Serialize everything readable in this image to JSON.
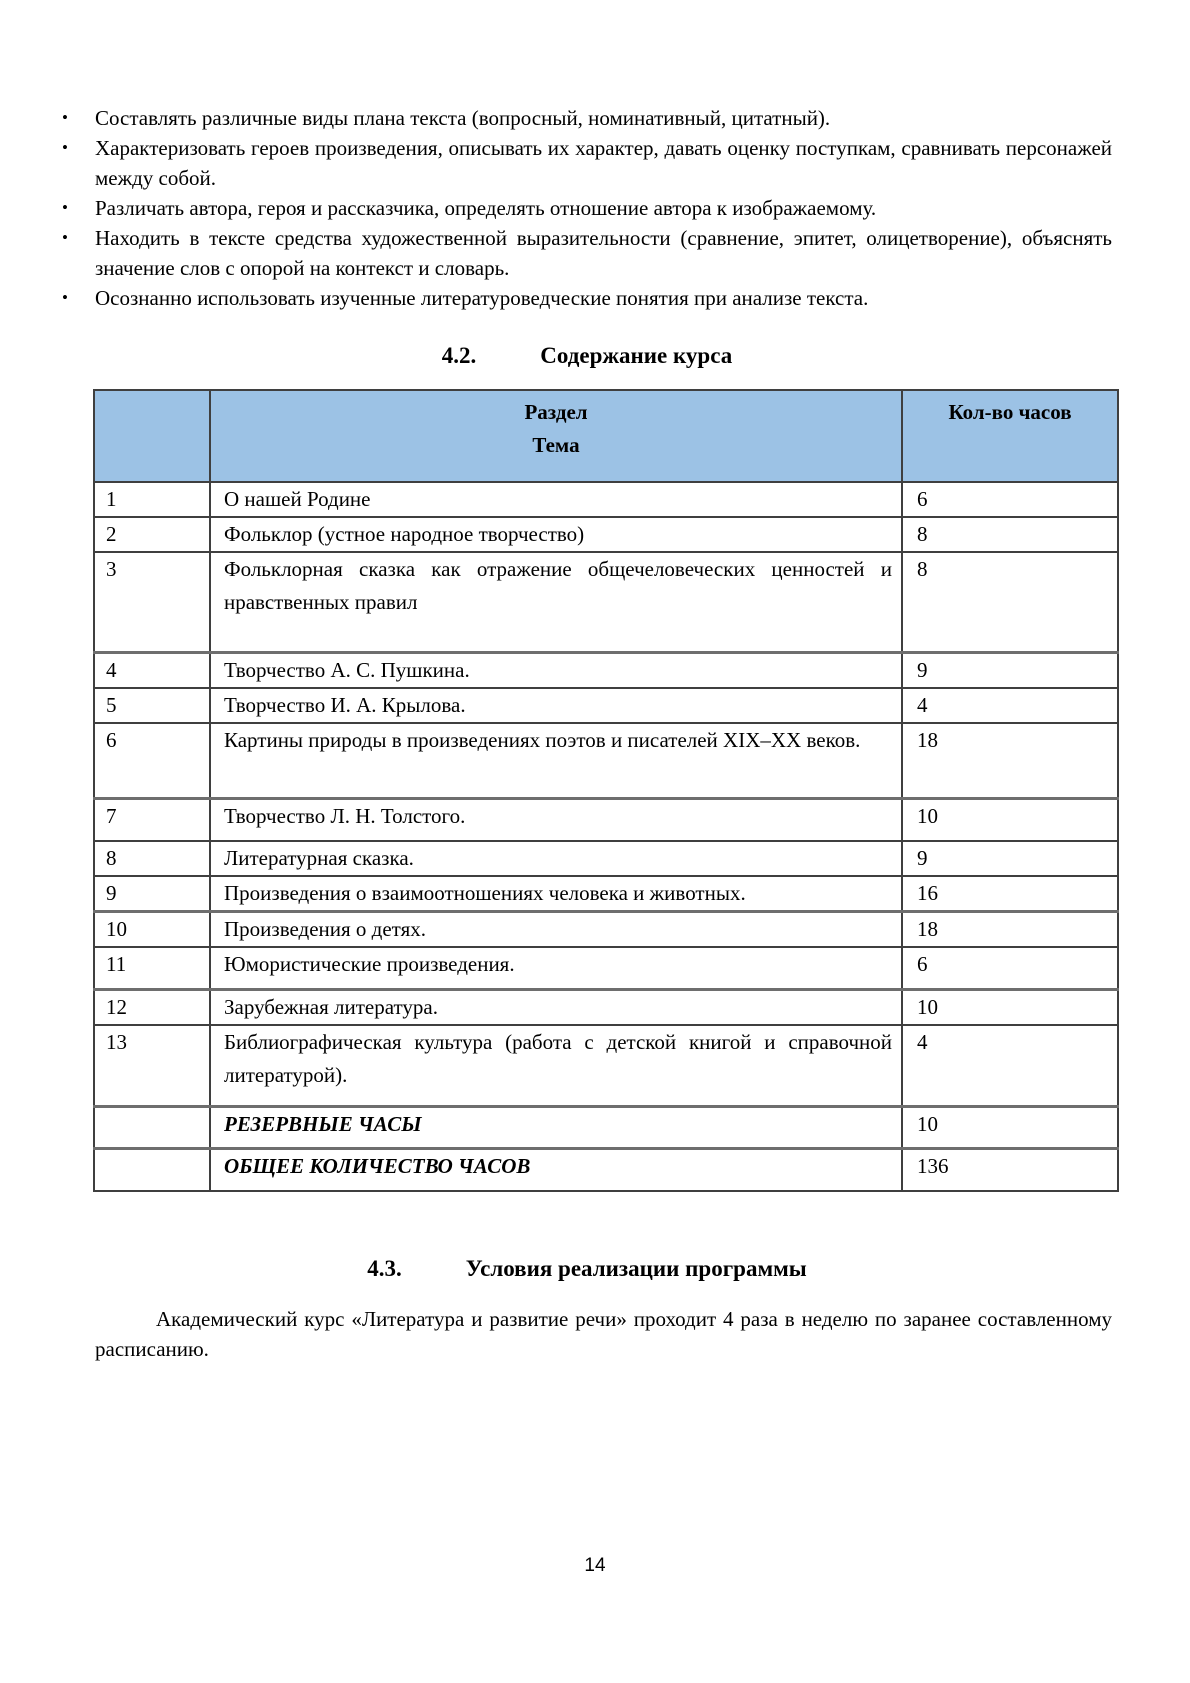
{
  "bullets": [
    "Составлять различные виды плана текста (вопросный, номинативный, цитатный).",
    "Характеризовать героев произведения, описывать их характер, давать оценку поступкам, сравнивать персонажей между собой.",
    "Различать автора, героя и рассказчика, определять отношение автора к изображаемому.",
    "Находить в тексте средства художественной выразительности (сравнение, эпитет, олицетворение), объяснять значение слов с опорой на контекст и словарь.",
    "Осознанно использовать изученные литературоведческие понятия при анализе текста."
  ],
  "bullet_glyph": "•",
  "section_42": {
    "number": "4.2.",
    "title": "Содержание курса"
  },
  "table": {
    "header_fill": "#9CC2E5",
    "header": {
      "col1": "",
      "col2_line1": "Раздел",
      "col2_line2": "Тема",
      "col3": "Кол-во часов"
    },
    "rows": [
      {
        "num": "1",
        "topic": "О нашей Родине",
        "hours": "6"
      },
      {
        "num": "2",
        "topic": "Фольклор (устное народное творчество)",
        "hours": "8"
      },
      {
        "num": "3",
        "topic": "Фольклорная сказка как отражение общечеловеческих ценностей и нравственных правил",
        "hours": "8",
        "justify": true,
        "minh": 100
      },
      {
        "num": "4",
        "topic": "Творчество А. С. Пушкина.",
        "hours": "9",
        "thickTop": true
      },
      {
        "num": "5",
        "topic": "Творчество И. А. Крылова.",
        "hours": "4"
      },
      {
        "num": "6",
        "topic": "Картины природы в произведениях поэтов и писателей XIX–XX веков.",
        "hours": "18",
        "justify": true,
        "minh": 76
      },
      {
        "num": "7",
        "topic": "Творчество Л. Н. Толстого.",
        "hours": "10",
        "thickTop": true,
        "minh": 42
      },
      {
        "num": "8",
        "topic": "Литературная сказка.",
        "hours": "9"
      },
      {
        "num": "9",
        "topic": "Произведения о взаимоотношениях человека и животных.",
        "hours": "16",
        "minh": 36
      },
      {
        "num": "10",
        "topic": "Произведения о детях.",
        "hours": "18",
        "thickTop": true
      },
      {
        "num": "11",
        "topic": "Юмористические произведения.",
        "hours": "6",
        "minh": 42
      },
      {
        "num": "12",
        "topic": "Зарубежная литература.",
        "hours": "10",
        "thickTop": true
      },
      {
        "num": "13",
        "topic": "Библиографическая культура (работа с детской книгой и справочной литературой).",
        "hours": "4",
        "justify": true,
        "minh": 82
      },
      {
        "num": "",
        "topic": "РЕЗЕРВНЫЕ ЧАСЫ",
        "hours": "10",
        "thickTop": true,
        "emphasis": true,
        "minh": 42
      },
      {
        "num": "",
        "topic": "ОБЩЕЕ КОЛИЧЕСТВО ЧАСОВ",
        "hours": "136",
        "thickTop": true,
        "emphasis": true,
        "minh": 42
      }
    ]
  },
  "section_43": {
    "number": "4.3.",
    "title": "Условия реализации программы"
  },
  "paragraph_43": "Академический курс «Литература и развитие речи» проходит 4 раза в неделю по заранее составленному расписанию.",
  "page": {
    "number": "14"
  }
}
